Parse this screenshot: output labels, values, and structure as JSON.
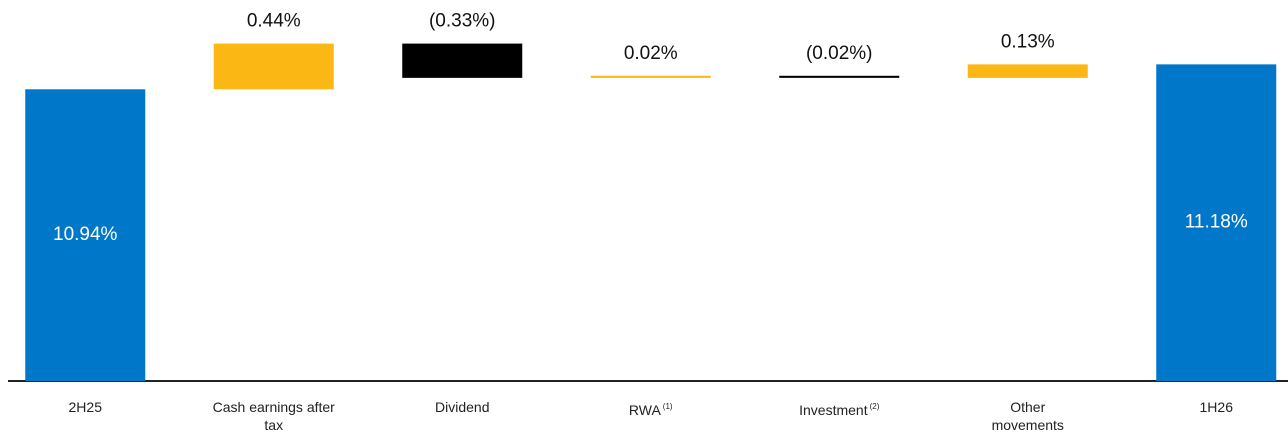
{
  "chart_data": {
    "type": "waterfall",
    "categories": [
      "2H25",
      "Cash earnings after tax",
      "Dividend",
      "RWA",
      "Investment",
      "Other movements",
      "1H26"
    ],
    "category_notes": [
      null,
      null,
      null,
      "(1)",
      "(2)",
      null,
      null
    ],
    "values": [
      10.94,
      0.44,
      -0.33,
      0.02,
      -0.02,
      0.13,
      11.18
    ],
    "value_labels": [
      "10.94%",
      "0.44%",
      "(0.33%)",
      "0.02%",
      "(0.02%)",
      "0.13%",
      "11.18%"
    ],
    "totals": [
      true,
      false,
      false,
      false,
      false,
      false,
      true
    ],
    "colors": {
      "total": "#0077c8",
      "increase": "#fbb713",
      "decrease": "#000000"
    },
    "ylim": [
      8.13,
      11.8
    ]
  }
}
